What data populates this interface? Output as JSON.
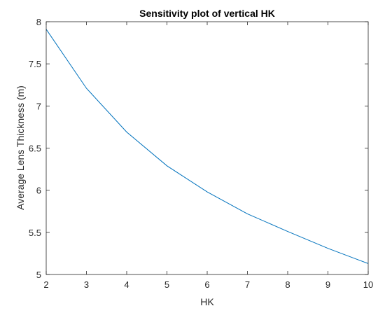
{
  "chart_data": {
    "type": "line",
    "title": "Sensitivity plot of vertical HK",
    "xlabel": "HK",
    "ylabel": "Average Lens Thickness (m)",
    "xlim": [
      2,
      10
    ],
    "ylim": [
      5,
      8
    ],
    "x_ticks": [
      2,
      3,
      4,
      5,
      6,
      7,
      8,
      9,
      10
    ],
    "y_ticks": [
      5,
      5.5,
      6,
      6.5,
      7,
      7.5,
      8
    ],
    "y_tick_labels": [
      "5",
      "5.5",
      "6",
      "6.5",
      "7",
      "7.5",
      "8"
    ],
    "grid": false,
    "line_color": "#0072BD",
    "series": [
      {
        "x": [
          2,
          3,
          4,
          5,
          6,
          7,
          8,
          9,
          10
        ],
        "values": [
          7.91,
          7.21,
          6.69,
          6.29,
          5.98,
          5.72,
          5.51,
          5.31,
          5.13
        ]
      }
    ]
  }
}
